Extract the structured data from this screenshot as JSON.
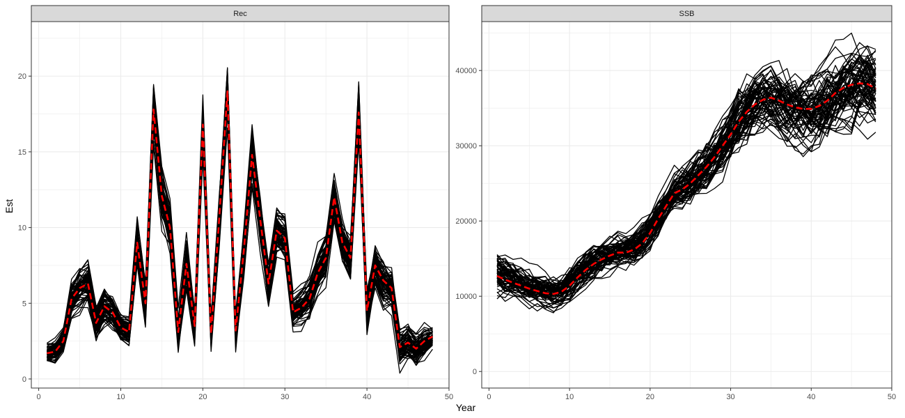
{
  "chart_data": {
    "type": "line",
    "xlabel": "Year",
    "ylabel": "Est",
    "colors": {
      "ensemble": "#000000",
      "median": "#ff0000",
      "strip": "#d9d9d9",
      "grid": "#ebebeb"
    },
    "ensemble_count": 70,
    "panels": [
      {
        "strip": "Rec",
        "xlim": [
          -0.9,
          50.0
        ],
        "ylim": [
          -0.6,
          23.6
        ],
        "x_ticks": [
          0,
          10,
          20,
          30,
          40,
          50
        ],
        "y_ticks": [
          0,
          5,
          10,
          15,
          20
        ],
        "median": {
          "x": [
            1,
            2,
            3,
            4,
            5,
            6,
            7,
            8,
            9,
            10,
            11,
            12,
            13,
            14,
            15,
            16,
            17,
            18,
            19,
            20,
            21,
            22,
            23,
            24,
            25,
            26,
            27,
            28,
            29,
            30,
            31,
            32,
            33,
            34,
            35,
            36,
            37,
            38,
            39,
            40,
            41,
            42,
            43,
            44,
            45,
            46,
            47,
            48
          ],
          "y": [
            1.7,
            1.8,
            2.5,
            5.3,
            6.0,
            6.3,
            3.7,
            4.8,
            4.4,
            3.4,
            3.1,
            9.0,
            5.0,
            17.8,
            12.1,
            10.0,
            3.1,
            7.6,
            3.5,
            16.8,
            3.0,
            10.6,
            19.0,
            3.2,
            8.5,
            14.8,
            10.5,
            6.3,
            9.8,
            9.3,
            4.4,
            4.7,
            5.3,
            7.0,
            8.0,
            12.0,
            9.0,
            8.0,
            17.6,
            4.5,
            7.5,
            6.5,
            6.0,
            2.1,
            2.4,
            2.0,
            2.5,
            2.8
          ]
        },
        "spread": [
          0.6,
          0.7,
          0.9,
          1.4,
          1.6,
          1.6,
          1.2,
          1.3,
          1.2,
          1.0,
          1.0,
          1.6,
          1.4,
          2.0,
          1.9,
          1.7,
          1.2,
          1.5,
          1.2,
          1.8,
          1.2,
          1.9,
          2.0,
          1.2,
          1.7,
          1.9,
          1.8,
          1.5,
          1.6,
          1.6,
          1.2,
          1.2,
          1.3,
          1.5,
          1.6,
          1.6,
          1.6,
          1.6,
          2.1,
          1.9,
          1.8,
          1.8,
          1.7,
          1.4,
          1.4,
          1.4,
          1.5,
          0.8
        ]
      },
      {
        "strip": "SSB",
        "xlim": [
          -0.9,
          50.0
        ],
        "ylim": [
          -2200,
          46500
        ],
        "x_ticks": [
          0,
          10,
          20,
          30,
          40,
          50
        ],
        "y_ticks": [
          0,
          10000,
          20000,
          30000,
          40000
        ],
        "median": {
          "x": [
            1,
            2,
            3,
            4,
            5,
            6,
            7,
            8,
            9,
            10,
            11,
            12,
            13,
            14,
            15,
            16,
            17,
            18,
            19,
            20,
            21,
            22,
            23,
            24,
            25,
            26,
            27,
            28,
            29,
            30,
            31,
            32,
            33,
            34,
            35,
            36,
            37,
            38,
            39,
            40,
            41,
            42,
            43,
            44,
            45,
            46,
            47,
            48
          ],
          "y": [
            12700,
            12200,
            11800,
            11400,
            11000,
            10700,
            10400,
            10300,
            10600,
            11400,
            12500,
            13500,
            14300,
            14900,
            15400,
            15800,
            15800,
            16200,
            17000,
            18400,
            20300,
            22000,
            23700,
            24200,
            25000,
            26100,
            27200,
            28500,
            30000,
            31500,
            33200,
            34500,
            35500,
            36100,
            36400,
            36000,
            35500,
            35100,
            34900,
            34900,
            35300,
            36000,
            37000,
            37700,
            38100,
            38300,
            38200,
            37600
          ]
        },
        "spread": [
          2800,
          2800,
          2700,
          2700,
          2600,
          2500,
          2500,
          2400,
          2400,
          2400,
          2400,
          2400,
          2400,
          2400,
          2400,
          2400,
          2400,
          2400,
          2400,
          2400,
          2500,
          2500,
          2600,
          2800,
          3000,
          3200,
          3400,
          3600,
          3800,
          4000,
          4200,
          4400,
          4500,
          4600,
          4700,
          4800,
          4900,
          5000,
          5100,
          5200,
          5300,
          5400,
          5500,
          5600,
          5700,
          5800,
          5900,
          6000
        ]
      }
    ]
  }
}
